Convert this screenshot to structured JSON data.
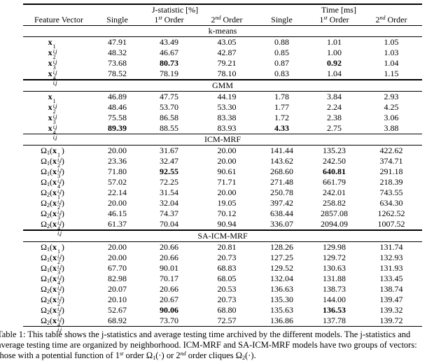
{
  "colors": {
    "background": "#ffffff",
    "text": "#000000",
    "rule": "#000000"
  },
  "table": {
    "header": {
      "feature_vector": "Feature Vector",
      "groups": [
        {
          "label": "J-statistic [%]"
        },
        {
          "label": "Time [ms]"
        }
      ],
      "columns": [
        "Single",
        "1^st^ Order",
        "2^nd^ Order",
        "Single",
        "1^st^ Order",
        "2^nd^ Order"
      ]
    },
    "sections": [
      {
        "name": "k-means",
        "rows": [
          {
            "feature": {
              "omega": null,
              "base": "x",
              "sup": "1",
              "sub": "i,j"
            },
            "values": [
              "47.91",
              "43.49",
              "43.05",
              "0.88",
              "1.01",
              "1.05"
            ],
            "bold_indices": []
          },
          {
            "feature": {
              "omega": null,
              "base": "x",
              "sup": "2",
              "sub": "i,j"
            },
            "values": [
              "48.32",
              "46.67",
              "42.87",
              "0.85",
              "1.00",
              "1.03"
            ],
            "bold_indices": []
          },
          {
            "feature": {
              "omega": null,
              "base": "x",
              "sup": "3",
              "sub": "i,j"
            },
            "values": [
              "73.68",
              "80.73",
              "79.21",
              "0.87",
              "0.92",
              "1.04"
            ],
            "bold_indices": [
              1,
              4
            ]
          },
          {
            "feature": {
              "omega": null,
              "base": "x",
              "sup": "4",
              "sub": "i,j"
            },
            "values": [
              "78.52",
              "78.19",
              "78.10",
              "0.83",
              "1.04",
              "1.15"
            ],
            "bold_indices": []
          }
        ]
      },
      {
        "name": "GMM",
        "rows": [
          {
            "feature": {
              "omega": null,
              "base": "x",
              "sup": "1",
              "sub": "i,j"
            },
            "values": [
              "46.89",
              "47.75",
              "44.19",
              "1.78",
              "3.84",
              "2.93"
            ],
            "bold_indices": []
          },
          {
            "feature": {
              "omega": null,
              "base": "x",
              "sup": "2",
              "sub": "i,j"
            },
            "values": [
              "48.46",
              "53.70",
              "53.30",
              "1.77",
              "2.24",
              "4.25"
            ],
            "bold_indices": []
          },
          {
            "feature": {
              "omega": null,
              "base": "x",
              "sup": "3",
              "sub": "i,j"
            },
            "values": [
              "75.58",
              "86.58",
              "83.38",
              "1.72",
              "2.38",
              "3.06"
            ],
            "bold_indices": []
          },
          {
            "feature": {
              "omega": null,
              "base": "x",
              "sup": "4",
              "sub": "i,j"
            },
            "values": [
              "89.39",
              "88.55",
              "83.93",
              "4.33",
              "2.75",
              "3.88"
            ],
            "bold_indices": [
              0,
              3
            ]
          }
        ]
      },
      {
        "name": "ICM-MRF",
        "rows": [
          {
            "feature": {
              "omega": "1",
              "base": "x",
              "sup": "1",
              "sub": "i,j"
            },
            "values": [
              "20.00",
              "31.67",
              "20.00",
              "141.44",
              "135.23",
              "422.62"
            ],
            "bold_indices": []
          },
          {
            "feature": {
              "omega": "1",
              "base": "x",
              "sup": "2",
              "sub": "i,j"
            },
            "values": [
              "23.36",
              "32.47",
              "20.00",
              "143.62",
              "242.50",
              "374.71"
            ],
            "bold_indices": []
          },
          {
            "feature": {
              "omega": "1",
              "base": "x",
              "sup": "3",
              "sub": "i,j"
            },
            "values": [
              "71.80",
              "92.55",
              "90.61",
              "268.60",
              "640.81",
              "291.18"
            ],
            "bold_indices": [
              1,
              4
            ]
          },
          {
            "feature": {
              "omega": "1",
              "base": "x",
              "sup": "4",
              "sub": "i,j"
            },
            "values": [
              "57.02",
              "72.25",
              "71.71",
              "271.48",
              "661.79",
              "218.39"
            ],
            "bold_indices": []
          },
          {
            "feature": {
              "omega": "2",
              "base": "x",
              "sup": "1",
              "sub": "i,j"
            },
            "values": [
              "22.14",
              "31.54",
              "20.00",
              "250.78",
              "242.01",
              "743.55"
            ],
            "bold_indices": []
          },
          {
            "feature": {
              "omega": "2",
              "base": "x",
              "sup": "2",
              "sub": "i,j"
            },
            "values": [
              "20.00",
              "32.04",
              "19.05",
              "397.42",
              "258.82",
              "634.30"
            ],
            "bold_indices": []
          },
          {
            "feature": {
              "omega": "2",
              "base": "x",
              "sup": "3",
              "sub": "i,j"
            },
            "values": [
              "46.15",
              "74.37",
              "70.12",
              "638.44",
              "2857.08",
              "1262.52"
            ],
            "bold_indices": []
          },
          {
            "feature": {
              "omega": "2",
              "base": "x",
              "sup": "4",
              "sub": "i,j"
            },
            "values": [
              "61.37",
              "70.04",
              "90.94",
              "336.07",
              "2094.09",
              "1007.52"
            ],
            "bold_indices": []
          }
        ]
      },
      {
        "name": "SA-ICM-MRF",
        "rows": [
          {
            "feature": {
              "omega": "1",
              "base": "x",
              "sup": "1",
              "sub": "i,j"
            },
            "values": [
              "20.00",
              "20.66",
              "20.81",
              "128.26",
              "129.98",
              "131.74"
            ],
            "bold_indices": []
          },
          {
            "feature": {
              "omega": "1",
              "base": "x",
              "sup": "2",
              "sub": "i,j"
            },
            "values": [
              "20.00",
              "20.66",
              "20.73",
              "127.25",
              "129.72",
              "132.93"
            ],
            "bold_indices": []
          },
          {
            "feature": {
              "omega": "1",
              "base": "x",
              "sup": "3",
              "sub": "i,j"
            },
            "values": [
              "67.70",
              "90.01",
              "68.83",
              "129.52",
              "130.63",
              "131.93"
            ],
            "bold_indices": []
          },
          {
            "feature": {
              "omega": "1",
              "base": "x",
              "sup": "4",
              "sub": "i,j"
            },
            "values": [
              "82.98",
              "70.17",
              "68.05",
              "132.04",
              "131.88",
              "133.45"
            ],
            "bold_indices": []
          },
          {
            "feature": {
              "omega": "2",
              "base": "x",
              "sup": "1",
              "sub": "i,j"
            },
            "values": [
              "20.07",
              "20.66",
              "20.53",
              "136.63",
              "138.73",
              "138.74"
            ],
            "bold_indices": []
          },
          {
            "feature": {
              "omega": "2",
              "base": "x",
              "sup": "2",
              "sub": "i,j"
            },
            "values": [
              "20.10",
              "20.67",
              "20.73",
              "135.30",
              "144.00",
              "139.47"
            ],
            "bold_indices": []
          },
          {
            "feature": {
              "omega": "2",
              "base": "x",
              "sup": "3",
              "sub": "i,j"
            },
            "values": [
              "52.67",
              "90.06",
              "68.80",
              "135.63",
              "136.53",
              "139.32"
            ],
            "bold_indices": [
              1,
              4
            ]
          },
          {
            "feature": {
              "omega": "2",
              "base": "x",
              "sup": "4",
              "sub": "i,j"
            },
            "values": [
              "68.92",
              "73.70",
              "72.57",
              "136.86",
              "137.78",
              "139.72"
            ],
            "bold_indices": []
          }
        ]
      }
    ]
  },
  "caption": {
    "lines": [
      "Table 1: This table shows the j-statistics and average testing time archived by the different models. The j-statistics and",
      "average testing time are organized by neighborhood. ICM-MRF and SA-ICM-MRF models have two groups of vectors:",
      "those with a potential function of 1^st^ order Ω~1~(·) or 2^nd^ order cliques Ω~2~(·)."
    ]
  }
}
